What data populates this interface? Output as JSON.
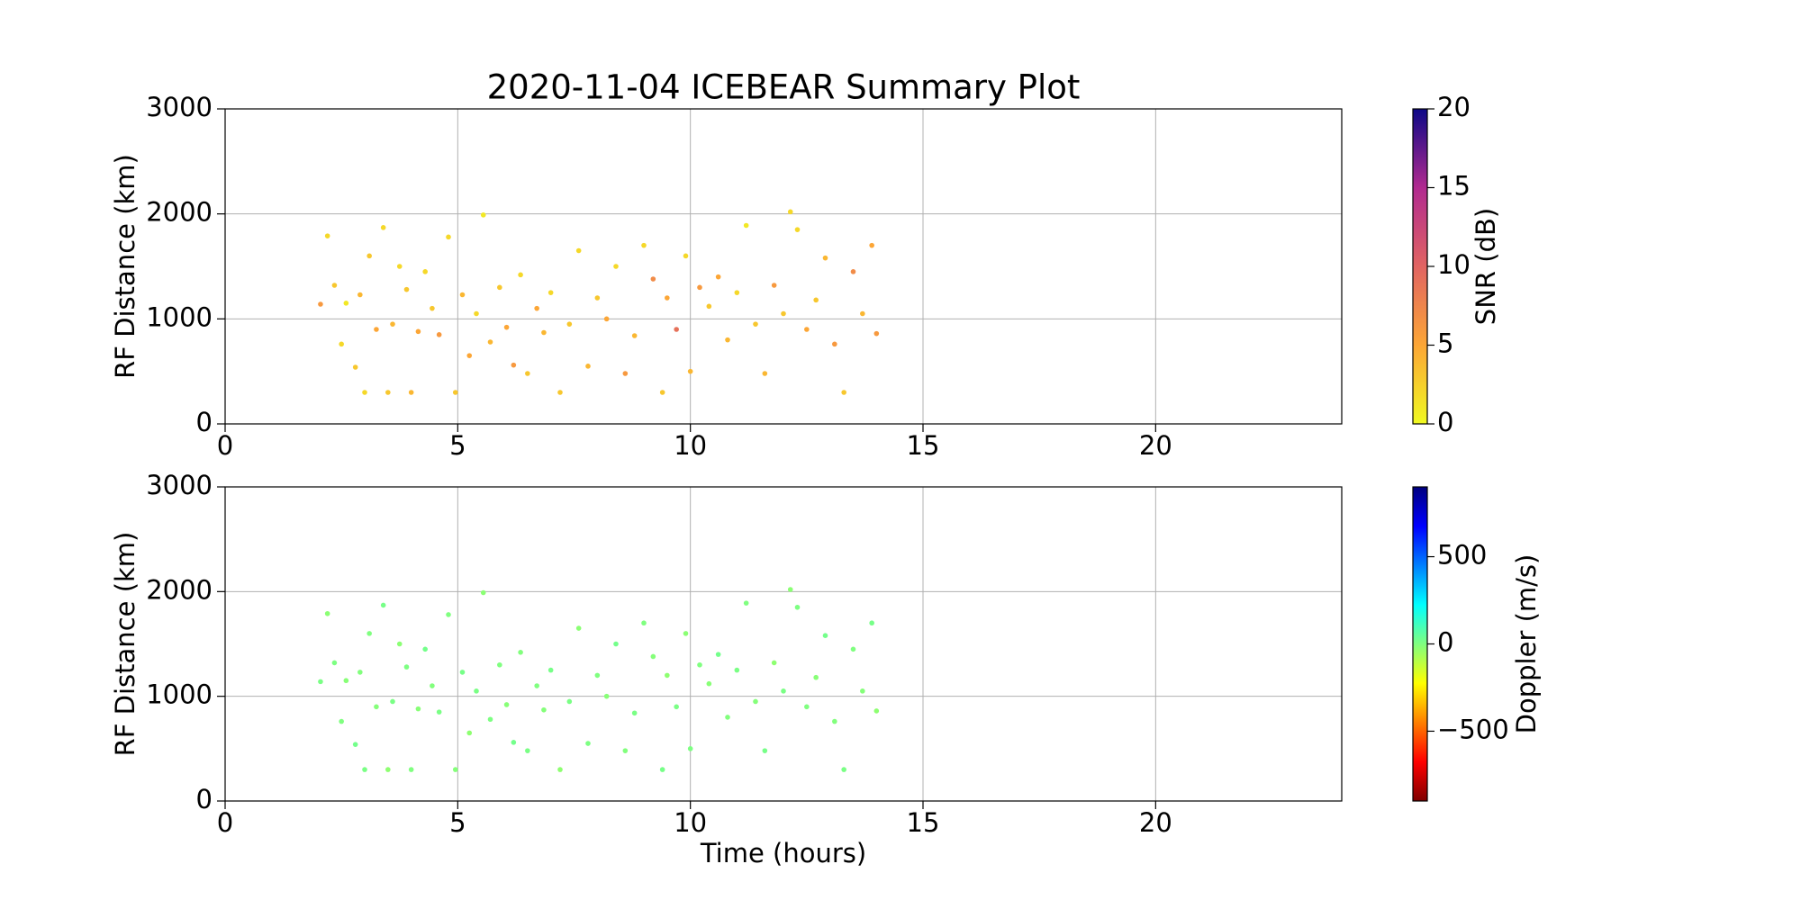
{
  "chart_data": [
    {
      "type": "scatter",
      "title": "2020-11-04 ICEBEAR Summary Plot",
      "ylabel": "RF Distance (km)",
      "x": [
        2.05,
        2.2,
        2.35,
        2.5,
        2.6,
        2.8,
        2.9,
        3.0,
        3.1,
        3.25,
        3.4,
        3.5,
        3.6,
        3.75,
        3.9,
        4.0,
        4.15,
        4.3,
        4.45,
        4.6,
        4.8,
        4.95,
        5.1,
        5.25,
        5.4,
        5.55,
        5.7,
        5.9,
        6.05,
        6.2,
        6.35,
        6.5,
        6.7,
        6.85,
        7.0,
        7.2,
        7.4,
        7.6,
        7.8,
        8.0,
        8.2,
        8.4,
        8.6,
        8.8,
        9.0,
        9.2,
        9.4,
        9.5,
        9.7,
        9.9,
        10.0,
        10.2,
        10.4,
        10.6,
        10.8,
        11.0,
        11.2,
        11.4,
        11.6,
        11.8,
        12.0,
        12.15,
        12.3,
        12.5,
        12.7,
        12.9,
        13.1,
        13.3,
        13.5,
        13.7,
        13.9,
        14.0
      ],
      "values": [
        1140,
        1790,
        1320,
        760,
        1150,
        540,
        1230,
        300,
        1600,
        900,
        1870,
        300,
        950,
        1500,
        1280,
        300,
        880,
        1450,
        1100,
        850,
        1780,
        300,
        1230,
        650,
        1050,
        1990,
        780,
        1300,
        920,
        560,
        1420,
        480,
        1100,
        870,
        1250,
        300,
        950,
        1650,
        550,
        1200,
        1000,
        1500,
        480,
        840,
        1700,
        1380,
        300,
        1200,
        900,
        1600,
        500,
        1300,
        1120,
        1400,
        800,
        1250,
        1890,
        950,
        480,
        1320,
        1050,
        2020,
        1850,
        900,
        1180,
        1580,
        760,
        300,
        1450,
        1050,
        1700,
        860
      ],
      "color_values": [
        6,
        2,
        3,
        2,
        1,
        3,
        4,
        2,
        3,
        5,
        2,
        3,
        4,
        2,
        3,
        4,
        5,
        2,
        3,
        6,
        2,
        3,
        4,
        5,
        2,
        1,
        4,
        3,
        5,
        6,
        2,
        3,
        5,
        4,
        2,
        3,
        3,
        2,
        4,
        3,
        5,
        2,
        6,
        4,
        2,
        7,
        3,
        5,
        9,
        2,
        4,
        6,
        3,
        5,
        4,
        2,
        1,
        3,
        4,
        6,
        3,
        2,
        2,
        5,
        3,
        4,
        6,
        3,
        7,
        4,
        5,
        6
      ],
      "colorbar": {
        "label": "SNR (dB)",
        "lim": [
          0,
          20
        ],
        "ticks": [
          0,
          5,
          10,
          15,
          20
        ],
        "colormap": "plasma_r"
      },
      "xlim": [
        0,
        24
      ],
      "ylim": [
        0,
        3000
      ],
      "xticks": [
        0,
        5,
        10,
        15,
        20
      ],
      "yticks": [
        0,
        1000,
        2000,
        3000
      ],
      "grid": true
    },
    {
      "type": "scatter",
      "ylabel": "RF Distance (km)",
      "xlabel": "Time (hours)",
      "x": [
        2.05,
        2.2,
        2.35,
        2.5,
        2.6,
        2.8,
        2.9,
        3.0,
        3.1,
        3.25,
        3.4,
        3.5,
        3.6,
        3.75,
        3.9,
        4.0,
        4.15,
        4.3,
        4.45,
        4.6,
        4.8,
        4.95,
        5.1,
        5.25,
        5.4,
        5.55,
        5.7,
        5.9,
        6.05,
        6.2,
        6.35,
        6.5,
        6.7,
        6.85,
        7.0,
        7.2,
        7.4,
        7.6,
        7.8,
        8.0,
        8.2,
        8.4,
        8.6,
        8.8,
        9.0,
        9.2,
        9.4,
        9.5,
        9.7,
        9.9,
        10.0,
        10.2,
        10.4,
        10.6,
        10.8,
        11.0,
        11.2,
        11.4,
        11.6,
        11.8,
        12.0,
        12.15,
        12.3,
        12.5,
        12.7,
        12.9,
        13.1,
        13.3,
        13.5,
        13.7,
        13.9,
        14.0
      ],
      "values": [
        1140,
        1790,
        1320,
        760,
        1150,
        540,
        1230,
        300,
        1600,
        900,
        1870,
        300,
        950,
        1500,
        1280,
        300,
        880,
        1450,
        1100,
        850,
        1780,
        300,
        1230,
        650,
        1050,
        1990,
        780,
        1300,
        920,
        560,
        1420,
        480,
        1100,
        870,
        1250,
        300,
        950,
        1650,
        550,
        1200,
        1000,
        1500,
        480,
        840,
        1700,
        1380,
        300,
        1200,
        900,
        1600,
        500,
        1300,
        1120,
        1400,
        800,
        1250,
        1890,
        950,
        480,
        1320,
        1050,
        2020,
        1850,
        900,
        1180,
        1580,
        760,
        300,
        1450,
        1050,
        1700,
        860
      ],
      "color_values": [
        10,
        -20,
        5,
        0,
        -15,
        20,
        -5,
        10,
        0,
        -10,
        15,
        -25,
        10,
        -20,
        5,
        0,
        -15,
        20,
        -5,
        10,
        0,
        -10,
        15,
        -25,
        10,
        -20,
        5,
        0,
        -15,
        20,
        -5,
        10,
        0,
        -10,
        15,
        -25,
        10,
        -20,
        5,
        0,
        -15,
        20,
        -5,
        10,
        0,
        -10,
        15,
        -25,
        10,
        -20,
        5,
        0,
        -15,
        20,
        -5,
        10,
        0,
        -10,
        15,
        -25,
        10,
        -20,
        5,
        0,
        -15,
        20,
        -5,
        10,
        0,
        -10,
        15,
        -25
      ],
      "colorbar": {
        "label": "Doppler (m/s)",
        "lim": [
          -900,
          900
        ],
        "ticks": [
          {
            "value": -500,
            "label": "−500"
          },
          0,
          500
        ],
        "colormap": "jet_r"
      },
      "xlim": [
        0,
        24
      ],
      "ylim": [
        0,
        3000
      ],
      "xticks": [
        0,
        5,
        10,
        15,
        20
      ],
      "yticks": [
        0,
        1000,
        2000,
        3000
      ],
      "grid": true
    }
  ]
}
